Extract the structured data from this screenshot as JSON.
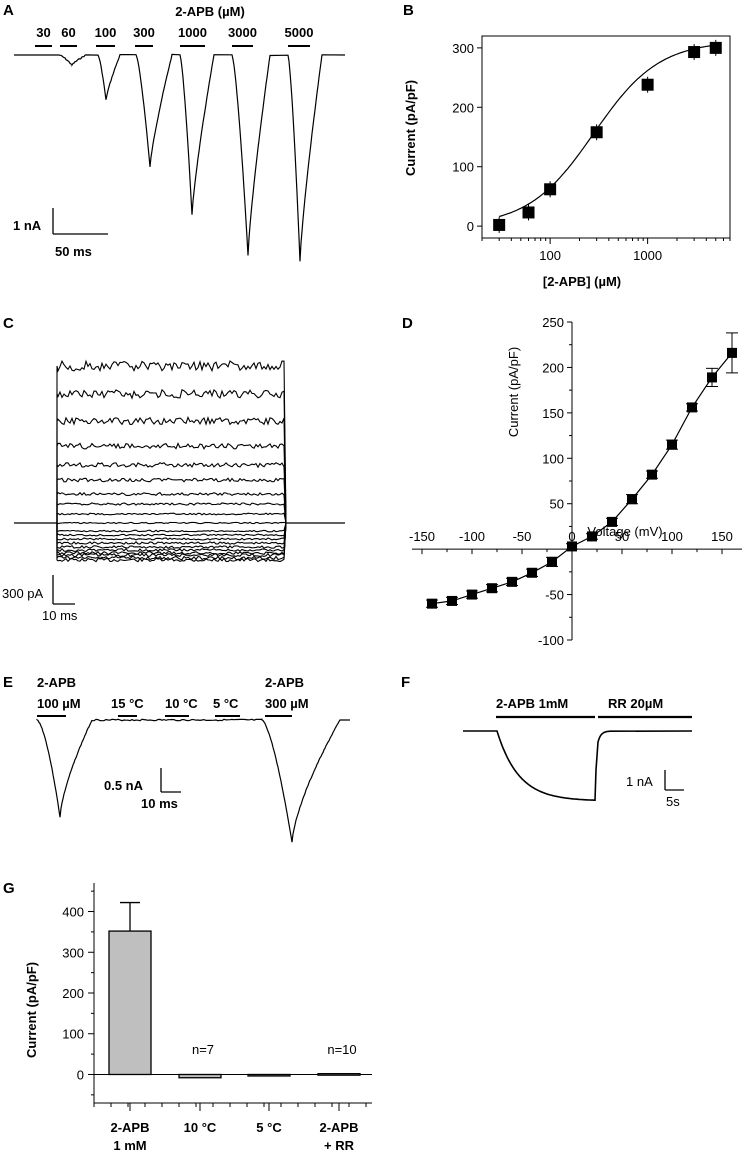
{
  "panels": {
    "A": {
      "label": "A",
      "title": "2-APB (µM)",
      "conc_labels": [
        "30",
        "60",
        "100",
        "300",
        "1000",
        "3000",
        "5000"
      ],
      "scale_y": "1 nA",
      "scale_x": "50 ms"
    },
    "B": {
      "label": "B"
    },
    "C": {
      "label": "C",
      "scale_y": "300 pA",
      "scale_x": "10 ms"
    },
    "D": {
      "label": "D"
    },
    "E": {
      "label": "E",
      "labels": [
        "2-APB",
        "100 µM",
        "15 °C",
        "10 °C",
        "5 °C",
        "2-APB",
        "300 µM"
      ],
      "scale_y": "0.5 nA",
      "scale_x": "10 ms"
    },
    "F": {
      "label": "F",
      "labels": [
        "2-APB 1mM",
        "RR 20µM"
      ],
      "scale_y": "1 nA",
      "scale_x": "5s"
    },
    "G": {
      "label": "G"
    }
  },
  "chart_data": [
    {
      "panel": "B",
      "type": "scatter",
      "xlabel": "[2-APB] (µM)",
      "ylabel": "Current (pA/pF)",
      "xscale": "log",
      "x_ticks": [
        "100",
        "1000"
      ],
      "y_ticks": [
        "0",
        "100",
        "200",
        "300"
      ],
      "ylim": [
        -20,
        320
      ],
      "x": [
        30,
        60,
        100,
        300,
        1000,
        3000,
        5000
      ],
      "y": [
        2,
        23,
        62,
        158,
        238,
        293,
        300
      ],
      "fit": "Hill curve"
    },
    {
      "panel": "D",
      "type": "scatter",
      "xlabel": "Voltage (mV)",
      "ylabel": "Current  (pA/pF)",
      "x_ticks": [
        "-150",
        "-100",
        "-50",
        "0",
        "50",
        "100",
        "150"
      ],
      "y_ticks": [
        "-100",
        "-50",
        "0",
        "50",
        "100",
        "150",
        "200",
        "250"
      ],
      "xlim": [
        -150,
        170
      ],
      "ylim": [
        -100,
        250
      ],
      "x": [
        -140,
        -120,
        -100,
        -80,
        -60,
        -40,
        -20,
        0,
        20,
        40,
        60,
        80,
        100,
        120,
        140,
        160
      ],
      "y": [
        -60,
        -57,
        -50,
        -43,
        -36,
        -26,
        -14,
        3,
        14,
        30,
        55,
        82,
        115,
        156,
        189,
        216
      ],
      "err": [
        4,
        4,
        4,
        4,
        4,
        4,
        5,
        3,
        3,
        4,
        5,
        4,
        5,
        4,
        10,
        22
      ]
    },
    {
      "panel": "G",
      "type": "bar",
      "ylabel": "Current (pA/pF)",
      "categories": [
        "2-APB\n1 mM",
        "10 °C",
        "5 °C",
        "2-APB\n+ RR"
      ],
      "values": [
        352,
        -8,
        -3,
        2
      ],
      "errors": [
        70,
        0,
        0,
        0
      ],
      "annotations": [
        {
          "category": 1,
          "text": "n=7"
        },
        {
          "category": 3,
          "text": "n=10"
        }
      ],
      "y_ticks": [
        "0",
        "100",
        "200",
        "300",
        "400"
      ],
      "ylim": [
        -70,
        470
      ]
    }
  ]
}
